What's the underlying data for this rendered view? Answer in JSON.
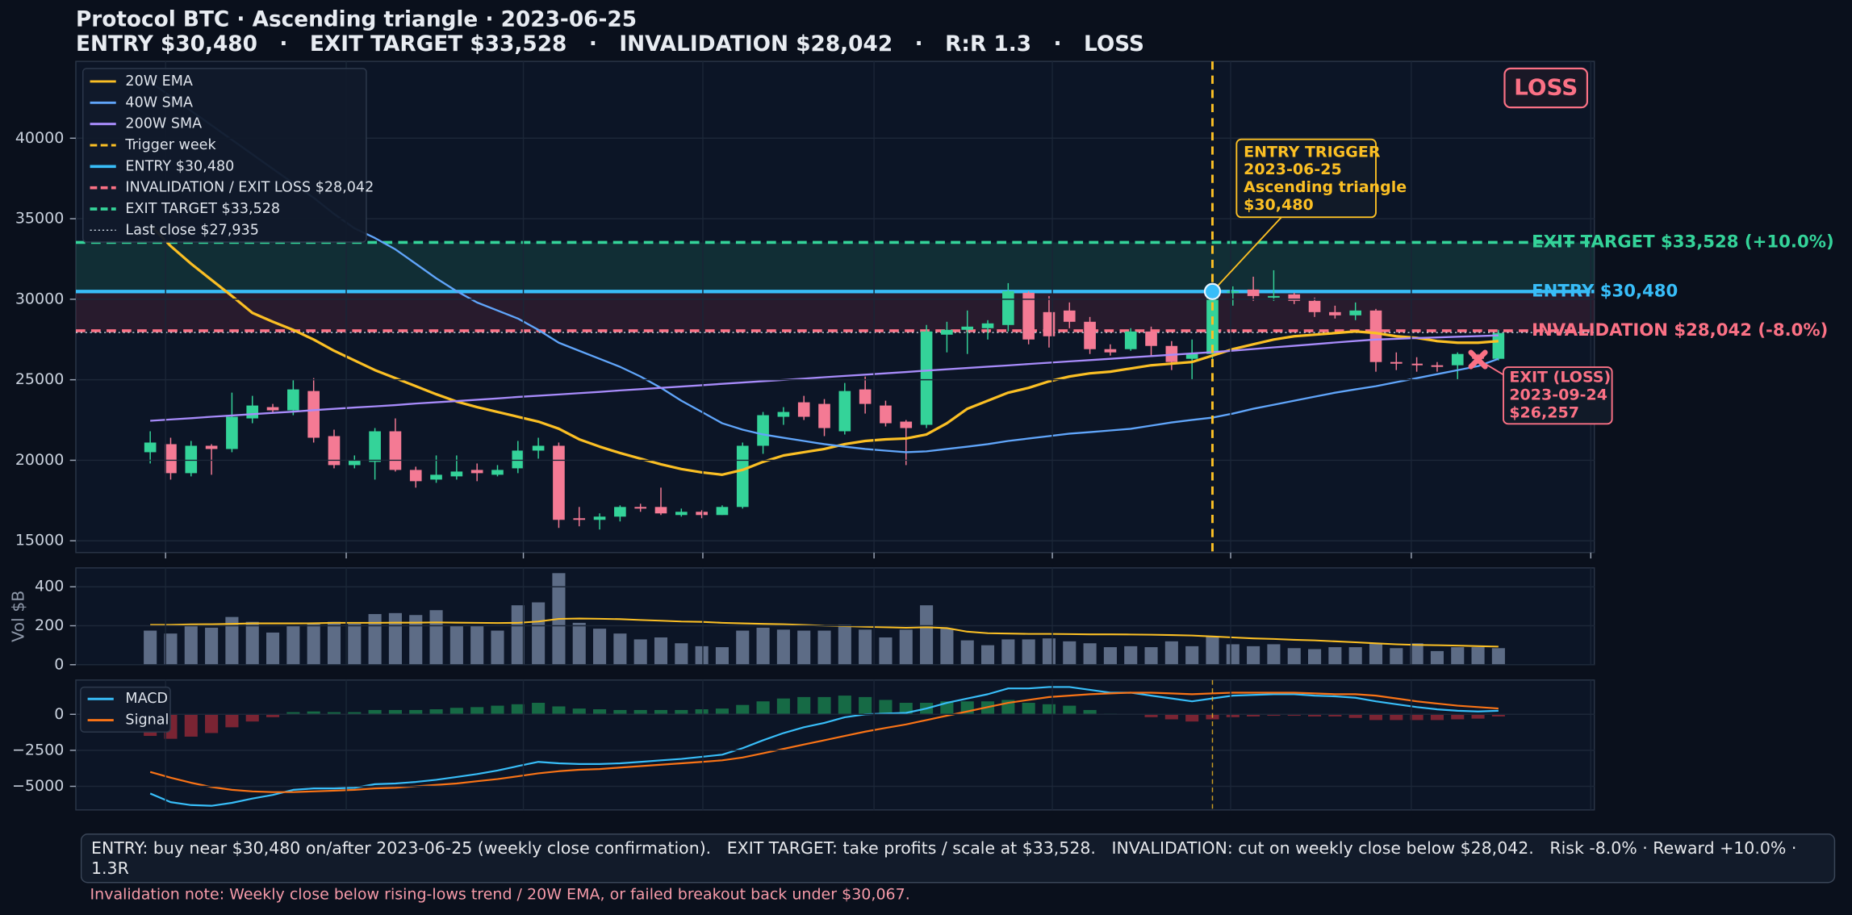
{
  "chart_data": {
    "type": "candlestick",
    "title": "Protocol BTC · Ascending triangle · 2023-06-25",
    "subtitle": "ENTRY $30,480   ·   EXIT TARGET $33,528   ·   INVALIDATION $28,042   ·   R:R 1.3   ·   LOSS",
    "badge": "LOSS",
    "up_color": "#34d399",
    "down_color": "#f47a94",
    "price": {
      "ylim": [
        14270,
        44770
      ],
      "yticks": [
        15000,
        20000,
        25000,
        30000,
        35000,
        40000
      ],
      "grid": true,
      "candles": [
        [
          20500,
          21800,
          19800,
          21100
        ],
        [
          21000,
          21400,
          18800,
          19200
        ],
        [
          19200,
          21200,
          19000,
          20900
        ],
        [
          20900,
          21000,
          19100,
          20700
        ],
        [
          20700,
          24200,
          20500,
          22700
        ],
        [
          22600,
          24000,
          22300,
          23400
        ],
        [
          23300,
          23500,
          22900,
          23100
        ],
        [
          23100,
          25000,
          22800,
          24400
        ],
        [
          24300,
          25100,
          21100,
          21400
        ],
        [
          21500,
          21900,
          19500,
          19700
        ],
        [
          19700,
          20300,
          19500,
          20000
        ],
        [
          19900,
          22000,
          18800,
          21800
        ],
        [
          21800,
          22600,
          19300,
          19400
        ],
        [
          19400,
          19600,
          18300,
          18700
        ],
        [
          18800,
          20300,
          18600,
          19100
        ],
        [
          19000,
          20300,
          18800,
          19300
        ],
        [
          19400,
          19800,
          18700,
          19200
        ],
        [
          19100,
          19700,
          19000,
          19400
        ],
        [
          19500,
          21200,
          19200,
          20600
        ],
        [
          20600,
          21400,
          20100,
          20900
        ],
        [
          20900,
          21100,
          15800,
          16300
        ],
        [
          16400,
          17100,
          15900,
          16300
        ],
        [
          16300,
          16700,
          15700,
          16500
        ],
        [
          16500,
          17200,
          16200,
          17100
        ],
        [
          17100,
          17300,
          16800,
          17000
        ],
        [
          17100,
          18300,
          16600,
          16700
        ],
        [
          16600,
          17000,
          16500,
          16800
        ],
        [
          16800,
          16900,
          16400,
          16600
        ],
        [
          16600,
          17200,
          16600,
          17100
        ],
        [
          17100,
          21100,
          17000,
          20900
        ],
        [
          20900,
          23000,
          20400,
          22800
        ],
        [
          22700,
          23300,
          22200,
          23000
        ],
        [
          23600,
          24000,
          22500,
          22700
        ],
        [
          23500,
          23800,
          21500,
          22000
        ],
        [
          21800,
          24800,
          21600,
          24300
        ],
        [
          24400,
          25200,
          22900,
          23500
        ],
        [
          23400,
          23700,
          22100,
          22300
        ],
        [
          22400,
          22500,
          19700,
          22000
        ],
        [
          22200,
          28400,
          22000,
          28000
        ],
        [
          27800,
          28600,
          26700,
          28100
        ],
        [
          28100,
          29300,
          26600,
          28300
        ],
        [
          28200,
          28700,
          27500,
          28500
        ],
        [
          28400,
          31000,
          28000,
          30500
        ],
        [
          30400,
          30500,
          27200,
          27500
        ],
        [
          29200,
          30200,
          27000,
          27700
        ],
        [
          29300,
          29800,
          28200,
          28600
        ],
        [
          28600,
          28900,
          26600,
          26900
        ],
        [
          26900,
          27200,
          26500,
          26700
        ],
        [
          26900,
          28200,
          26800,
          28000
        ],
        [
          28000,
          28300,
          26500,
          27100
        ],
        [
          27100,
          27400,
          25600,
          26100
        ],
        [
          26300,
          27500,
          25000,
          26600
        ],
        [
          26600,
          31000,
          26300,
          30500
        ],
        [
          30400,
          30800,
          29600,
          30500
        ],
        [
          30600,
          31400,
          29900,
          30200
        ],
        [
          30100,
          31800,
          29900,
          30200
        ],
        [
          30300,
          30400,
          29700,
          29900
        ],
        [
          29900,
          30100,
          28900,
          29200
        ],
        [
          29200,
          29600,
          28800,
          29000
        ],
        [
          29000,
          29800,
          28700,
          29300
        ],
        [
          29300,
          29400,
          25500,
          26100
        ],
        [
          26100,
          26700,
          25600,
          26000
        ],
        [
          26000,
          26400,
          25500,
          25900
        ],
        [
          25900,
          26100,
          25500,
          25800
        ],
        [
          25900,
          26700,
          25000,
          26600
        ],
        [
          26400,
          26600,
          26000,
          26300
        ],
        [
          26300,
          28100,
          26200,
          27900
        ]
      ],
      "series": [
        {
          "name": "20W EMA",
          "color": "#fbbf24",
          "values": [
            34600,
            33300,
            32200,
            31200,
            30200,
            29150,
            28600,
            28100,
            27500,
            26800,
            26200,
            25600,
            25100,
            24600,
            24100,
            23650,
            23300,
            23000,
            22700,
            22400,
            21960,
            21300,
            20850,
            20450,
            20100,
            19750,
            19450,
            19250,
            19100,
            19400,
            19900,
            20300,
            20500,
            20700,
            21000,
            21200,
            21300,
            21350,
            21600,
            22300,
            23200,
            23700,
            24200,
            24500,
            24900,
            25200,
            25400,
            25500,
            25700,
            25900,
            26000,
            26100,
            26500,
            26900,
            27200,
            27500,
            27700,
            27800,
            27900,
            28000,
            27900,
            27700,
            27600,
            27400,
            27300,
            27300,
            27400
          ]
        },
        {
          "name": "40W SMA",
          "color": "#60a5fa",
          "values": [
            43500,
            42600,
            41700,
            40800,
            39900,
            39000,
            38100,
            37200,
            36300,
            35300,
            34400,
            33800,
            33100,
            32200,
            31300,
            30500,
            29800,
            29300,
            28800,
            28100,
            27300,
            26800,
            26300,
            25800,
            25200,
            24500,
            23700,
            23000,
            22300,
            21900,
            21600,
            21400,
            21200,
            21000,
            20850,
            20700,
            20600,
            20500,
            20550,
            20700,
            20850,
            21000,
            21200,
            21350,
            21500,
            21650,
            21750,
            21850,
            21950,
            22150,
            22350,
            22500,
            22650,
            22900,
            23200,
            23450,
            23700,
            23950,
            24200,
            24400,
            24600,
            24850,
            25100,
            25350,
            25600,
            25850,
            26300
          ]
        },
        {
          "name": "200W SMA",
          "color": "#a78bfa",
          "values": [
            22450,
            22530,
            22610,
            22700,
            22780,
            22860,
            22940,
            23020,
            23110,
            23190,
            23270,
            23350,
            23430,
            23520,
            23600,
            23680,
            23760,
            23840,
            23930,
            24010,
            24090,
            24170,
            24250,
            24340,
            24420,
            24500,
            24580,
            24660,
            24750,
            24830,
            24910,
            24990,
            25070,
            25160,
            25240,
            25320,
            25400,
            25480,
            25570,
            25650,
            25730,
            25810,
            25890,
            25980,
            26060,
            26140,
            26220,
            26300,
            26390,
            26470,
            26550,
            26630,
            26710,
            26810,
            26910,
            27010,
            27110,
            27210,
            27310,
            27410,
            27500,
            27540,
            27590,
            27630,
            27670,
            27710,
            27750
          ]
        }
      ],
      "trigger": {
        "name": "Trigger week",
        "x": 52,
        "color": "#fbbf24"
      },
      "levels": [
        {
          "name": "ENTRY $30,480",
          "value": 30480,
          "color": "#38bdf8",
          "style": "solid",
          "tag": "ENTRY  $30,480"
        },
        {
          "name": "INVALIDATION / EXIT LOSS $28,042",
          "value": 28042,
          "color": "#fb7185",
          "style": "dashed",
          "tag": "INVALIDATION  $28,042  (-8.0%)"
        },
        {
          "name": "EXIT TARGET $33,528",
          "value": 33528,
          "color": "#34d399",
          "style": "dashed",
          "tag": "EXIT TARGET  $33,528  (+10.0%)"
        },
        {
          "name": "Last close $27,935",
          "value": 27935,
          "color": "#cbd5e1",
          "style": "dotted"
        }
      ],
      "entry_marker": {
        "x": 52,
        "value": 30480,
        "lines": [
          "ENTRY TRIGGER",
          "2023-06-25",
          "Ascending triangle",
          "$30,480"
        ],
        "color": "#fbbf24"
      },
      "exit_marker": {
        "x": 65,
        "value": 26257,
        "lines": [
          "EXIT (LOSS)",
          "2023-09-24",
          "$26,257"
        ],
        "color": "#fb7185"
      }
    },
    "volume": {
      "ylabel": "Vol $B",
      "ylim": [
        0,
        497
      ],
      "yticks": [
        0,
        200,
        400
      ],
      "color": "#5d6c86",
      "values": [
        175,
        160,
        205,
        190,
        245,
        220,
        165,
        200,
        210,
        220,
        210,
        260,
        265,
        255,
        280,
        200,
        200,
        175,
        305,
        320,
        470,
        215,
        185,
        160,
        130,
        140,
        110,
        95,
        90,
        175,
        190,
        180,
        175,
        175,
        205,
        180,
        140,
        180,
        305,
        185,
        125,
        100,
        130,
        130,
        135,
        120,
        110,
        90,
        95,
        90,
        120,
        95,
        145,
        105,
        95,
        105,
        85,
        80,
        90,
        90,
        110,
        85,
        110,
        70,
        90,
        90,
        85
      ],
      "average": {
        "color": "#fbbf24",
        "values": [
          205,
          205,
          207,
          208,
          210,
          212,
          212,
          212,
          213,
          215,
          215,
          215,
          216,
          216,
          217,
          216,
          215,
          214,
          215,
          222,
          235,
          237,
          236,
          234,
          230,
          226,
          222,
          220,
          215,
          212,
          210,
          208,
          204,
          200,
          198,
          195,
          192,
          190,
          192,
          188,
          170,
          162,
          160,
          158,
          158,
          157,
          156,
          156,
          155,
          154,
          152,
          150,
          145,
          140,
          135,
          132,
          128,
          125,
          120,
          115,
          110,
          105,
          102,
          100,
          98,
          95,
          93
        ]
      }
    },
    "macd": {
      "ylim": [
        -6640,
        2380
      ],
      "yticks": [
        0,
        {
          "value": -2500,
          "label": "−2500"
        },
        {
          "value": -5000,
          "label": "−5000"
        }
      ],
      "series": [
        {
          "name": "MACD",
          "color": "#38bdf8",
          "values": [
            -5500,
            -6100,
            -6300,
            -6350,
            -6150,
            -5850,
            -5600,
            -5250,
            -5150,
            -5150,
            -5100,
            -4850,
            -4800,
            -4700,
            -4550,
            -4350,
            -4150,
            -3900,
            -3600,
            -3300,
            -3400,
            -3450,
            -3450,
            -3400,
            -3300,
            -3200,
            -3100,
            -2950,
            -2800,
            -2350,
            -1800,
            -1300,
            -900,
            -600,
            -200,
            0,
            50,
            100,
            400,
            800,
            1100,
            1400,
            1800,
            1800,
            1900,
            1900,
            1700,
            1500,
            1500,
            1300,
            1100,
            900,
            1100,
            1300,
            1350,
            1400,
            1400,
            1300,
            1250,
            1150,
            900,
            700,
            500,
            350,
            250,
            200,
            250
          ]
        },
        {
          "name": "Signal",
          "color": "#f97316",
          "values": [
            -4000,
            -4400,
            -4750,
            -5050,
            -5250,
            -5350,
            -5400,
            -5400,
            -5350,
            -5300,
            -5250,
            -5150,
            -5100,
            -5000,
            -4900,
            -4800,
            -4650,
            -4500,
            -4300,
            -4100,
            -3950,
            -3850,
            -3800,
            -3700,
            -3600,
            -3500,
            -3400,
            -3300,
            -3200,
            -3000,
            -2700,
            -2400,
            -2100,
            -1800,
            -1500,
            -1200,
            -950,
            -700,
            -400,
            -100,
            200,
            500,
            800,
            1000,
            1200,
            1300,
            1400,
            1450,
            1500,
            1500,
            1450,
            1400,
            1450,
            1500,
            1500,
            1500,
            1500,
            1450,
            1400,
            1400,
            1300,
            1100,
            900,
            750,
            600,
            500,
            400
          ]
        }
      ],
      "histogram": {
        "up_color": "#166a45",
        "down_color": "#7a2433",
        "values": [
          -1500,
          -1700,
          -1550,
          -1300,
          -900,
          -500,
          -200,
          150,
          200,
          150,
          150,
          300,
          300,
          300,
          350,
          450,
          500,
          600,
          700,
          800,
          550,
          400,
          350,
          300,
          300,
          300,
          300,
          350,
          400,
          650,
          900,
          1100,
          1200,
          1200,
          1300,
          1200,
          1000,
          800,
          800,
          900,
          900,
          900,
          1000,
          800,
          700,
          600,
          300,
          50,
          0,
          -200,
          -350,
          -500,
          -350,
          -200,
          -150,
          -100,
          -100,
          -150,
          -150,
          -250,
          -400,
          -400,
          -400,
          -400,
          -350,
          -300,
          -150
        ]
      }
    },
    "footer": "ENTRY: buy near $30,480 on/after 2023-06-25 (weekly close confirmation).   EXIT TARGET: take profits / scale at $33,528.   INVALIDATION: cut on weekly close below $28,042.   Risk -8.0% · Reward +10.0% · 1.3R",
    "note": "Invalidation note: Weekly close below rising-lows trend / 20W EMA, or failed breakout back under $30,067."
  }
}
